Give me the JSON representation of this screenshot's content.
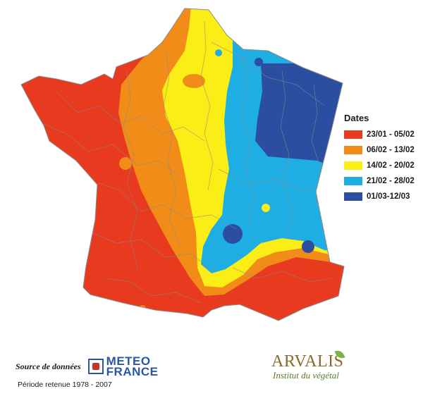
{
  "legend": {
    "title": "Dates",
    "items": [
      {
        "label": "23/01 - 05/02",
        "color": "#e73a1f"
      },
      {
        "label": "06/02 - 13/02",
        "color": "#f28c18"
      },
      {
        "label": "14/02 - 20/02",
        "color": "#fbee16"
      },
      {
        "label": "21/02 - 28/02",
        "color": "#1eaee3"
      },
      {
        "label": "01/03-12/03",
        "color": "#2b4ea0"
      }
    ]
  },
  "source": {
    "label": "Source de données",
    "logo_line1": "METEO",
    "logo_line2": "FRANCE"
  },
  "period": "Période retenue 1978 - 2007",
  "arvalis": {
    "name": "ARVALIS",
    "tagline": "Institut du végétal"
  },
  "icons": {
    "meteo_france_logo": "meteo-france-logo-icon",
    "arvalis_leaf": "leaf-icon"
  }
}
